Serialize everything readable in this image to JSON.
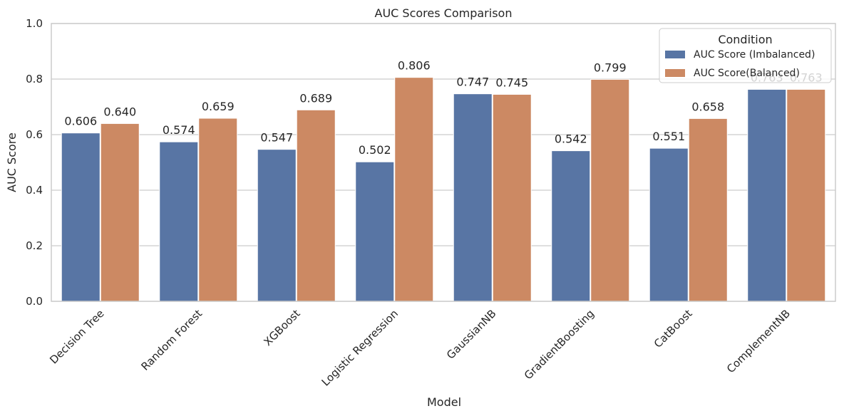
{
  "chart_data": {
    "type": "bar",
    "title": "AUC Scores Comparison",
    "xlabel": "Model",
    "ylabel": "AUC Score",
    "ylim": [
      0,
      1
    ],
    "yticks": [
      "0.0",
      "0.2",
      "0.4",
      "0.6",
      "0.8",
      "1.0"
    ],
    "grid": "horizontal",
    "legend_placement": "top-right",
    "legend_title": "Condition",
    "categories": [
      "Decision Tree",
      "Random Forest",
      "XGBoost",
      "Logistic Regression",
      "GaussianNB",
      "GradientBoosting",
      "CatBoost",
      "ComplementNB"
    ],
    "series": [
      {
        "name": "AUC Score (Imbalanced)",
        "color": "#5875a4",
        "values": [
          0.606,
          0.574,
          0.547,
          0.502,
          0.747,
          0.542,
          0.551,
          0.763
        ],
        "labels": [
          "0.606",
          "0.574",
          "0.547",
          "0.502",
          "0.747",
          "0.542",
          "0.551",
          "0.763"
        ]
      },
      {
        "name": "AUC Score(Balanced)",
        "color": "#cc8963",
        "values": [
          0.64,
          0.659,
          0.689,
          0.806,
          0.745,
          0.799,
          0.658,
          0.763
        ],
        "labels": [
          "0.640",
          "0.659",
          "0.689",
          "0.806",
          "0.745",
          "0.799",
          "0.658",
          "0.763"
        ]
      }
    ]
  }
}
